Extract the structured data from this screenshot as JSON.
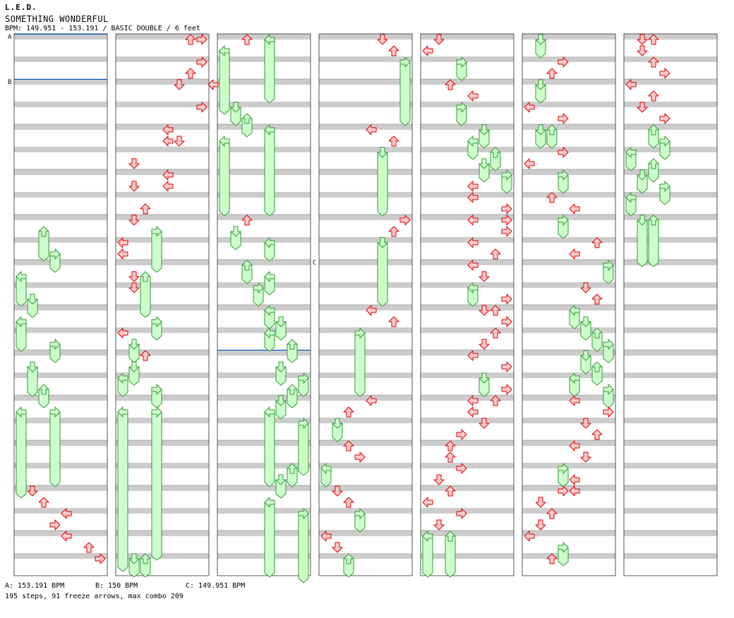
{
  "header": {
    "artist": "L.E.D.",
    "title": "SOMETHING WONDERFUL",
    "info": "BPM: 149.951 - 153.191 / BASIC DOUBLE / 6 feet"
  },
  "footer": {
    "bpm_a": "A: 153.191 BPM",
    "bpm_b": "B: 150 BPM",
    "bpm_c": "C: 149.951 BPM",
    "summary": "195 steps, 91 freeze arrows, max combo 209"
  },
  "markers": {
    "a": "A",
    "b": "B",
    "c": "C"
  },
  "colors": {
    "stripe": "#cccccc",
    "border": "#555555",
    "arrow_fill": "#ffcccc",
    "arrow_stroke": "#dd0000",
    "freeze_fill": "#ccffcc",
    "freeze_stroke": "#339933",
    "bpm_line": "#0055cc"
  },
  "chart_data": {
    "type": "step-chart",
    "mode": "BASIC DOUBLE",
    "difficulty_feet": 6,
    "bpm_range": [
      149.951,
      153.191
    ],
    "measures_per_column": 12,
    "lanes": [
      "L1",
      "D1",
      "U1",
      "R1",
      "L2",
      "D2",
      "U2",
      "R2"
    ],
    "bpm_changes": [
      {
        "label": "A",
        "bpm": 153.191,
        "beat": 0
      },
      {
        "label": "B",
        "bpm": 150,
        "beat": 4
      },
      {
        "label": "C",
        "bpm": 149.951,
        "beat": 124
      }
    ],
    "steps": 195,
    "freeze_arrows": 91,
    "max_combo": 209,
    "columns": [
      {
        "notes": [
          {
            "b": 17,
            "l": 2,
            "f": 2.5
          },
          {
            "b": 19,
            "l": 3,
            "f": 1.5
          },
          {
            "b": 21,
            "l": 0,
            "f": 2.5
          },
          {
            "b": 23,
            "l": 1,
            "f": 1.5
          },
          {
            "b": 25,
            "l": 0,
            "f": 2.5
          },
          {
            "b": 27,
            "l": 3,
            "f": 1.5
          },
          {
            "b": 29,
            "l": 1,
            "f": 2.5
          },
          {
            "b": 31,
            "l": 2,
            "f": 1.5
          },
          {
            "b": 33,
            "l": 0,
            "f": 7.5
          },
          {
            "b": 33,
            "l": 3,
            "f": 6.5
          },
          {
            "b": 40,
            "l": 1
          },
          {
            "b": 41,
            "l": 2
          },
          {
            "b": 42,
            "l": 4
          },
          {
            "b": 43,
            "l": 3
          },
          {
            "b": 44,
            "l": 4
          },
          {
            "b": 45,
            "l": 6
          },
          {
            "b": 46,
            "l": 7
          }
        ]
      },
      {
        "notes": [
          {
            "b": 0,
            "l": 6
          },
          {
            "b": 0,
            "l": 7
          },
          {
            "b": 2,
            "l": 7
          },
          {
            "b": 3,
            "l": 6
          },
          {
            "b": 4,
            "l": 5
          },
          {
            "b": 4,
            "l": 8
          },
          {
            "b": 6,
            "l": 7
          },
          {
            "b": 8,
            "l": 4
          },
          {
            "b": 9,
            "l": 4
          },
          {
            "b": 9,
            "l": 5
          },
          {
            "b": 11,
            "l": 1
          },
          {
            "b": 12,
            "l": 4
          },
          {
            "b": 13,
            "l": 1
          },
          {
            "b": 13,
            "l": 4
          },
          {
            "b": 15,
            "l": 2
          },
          {
            "b": 16,
            "l": 1
          },
          {
            "b": 17,
            "l": 3,
            "f": 3.5
          },
          {
            "b": 18,
            "l": 0
          },
          {
            "b": 19,
            "l": 0
          },
          {
            "b": 21,
            "l": 1
          },
          {
            "b": 21,
            "l": 2,
            "f": 3.5
          },
          {
            "b": 22,
            "l": 1
          },
          {
            "b": 25,
            "l": 3,
            "f": 1.5
          },
          {
            "b": 26,
            "l": 0
          },
          {
            "b": 27,
            "l": 1,
            "f": 1.5
          },
          {
            "b": 28,
            "l": 2
          },
          {
            "b": 29,
            "l": 1,
            "f": 1.5
          },
          {
            "b": 30,
            "l": 0,
            "f": 1.5
          },
          {
            "b": 31,
            "l": 3,
            "f": 1.5
          },
          {
            "b": 33,
            "l": 0,
            "f": 14
          },
          {
            "b": 33,
            "l": 3,
            "f": 13
          },
          {
            "b": 46,
            "l": 1,
            "f": 1.5
          },
          {
            "b": 46,
            "l": 2,
            "f": 1.5
          }
        ]
      },
      {
        "notes": [
          {
            "b": 0,
            "l": 2
          },
          {
            "b": 0,
            "l": 4,
            "f": 5.5
          },
          {
            "b": 1,
            "l": 0,
            "f": 5.5
          },
          {
            "b": 6,
            "l": 1,
            "f": 1.5
          },
          {
            "b": 7,
            "l": 2,
            "f": 1.5
          },
          {
            "b": 8,
            "l": 4,
            "f": 7.5
          },
          {
            "b": 9,
            "l": 0,
            "f": 6.5
          },
          {
            "b": 16,
            "l": 2
          },
          {
            "b": 17,
            "l": 1,
            "f": 1.5
          },
          {
            "b": 18,
            "l": 4,
            "f": 1.5
          },
          {
            "b": 20,
            "l": 2,
            "f": 1.5
          },
          {
            "b": 21,
            "l": 4,
            "f": 1.5
          },
          {
            "b": 22,
            "l": 3,
            "f": 1.5
          },
          {
            "b": 24,
            "l": 4,
            "f": 1.5
          },
          {
            "b": 25,
            "l": 5,
            "f": 1.5
          },
          {
            "b": 26,
            "l": 4,
            "f": 1.5
          },
          {
            "b": 27,
            "l": 6,
            "f": 1.5
          },
          {
            "b": 29,
            "l": 5,
            "f": 1.5
          },
          {
            "b": 30,
            "l": 7,
            "f": 1.5
          },
          {
            "b": 31,
            "l": 6,
            "f": 1.5
          },
          {
            "b": 32,
            "l": 5,
            "f": 1.5
          },
          {
            "b": 33,
            "l": 4,
            "f": 6.5
          },
          {
            "b": 34,
            "l": 7,
            "f": 4.5
          },
          {
            "b": 38,
            "l": 6,
            "f": 1.5
          },
          {
            "b": 39,
            "l": 5,
            "f": 1.5
          },
          {
            "b": 41,
            "l": 4,
            "f": 6.5
          },
          {
            "b": 42,
            "l": 7,
            "f": 7.5
          }
        ]
      },
      {
        "notes": [
          {
            "b": 0,
            "l": 5
          },
          {
            "b": 1,
            "l": 6
          },
          {
            "b": 2,
            "l": 7,
            "f": 5.5
          },
          {
            "b": 8,
            "l": 4
          },
          {
            "b": 9,
            "l": 6
          },
          {
            "b": 10,
            "l": 5,
            "f": 5.5
          },
          {
            "b": 16,
            "l": 7
          },
          {
            "b": 17,
            "l": 6
          },
          {
            "b": 18,
            "l": 5,
            "f": 5.5
          },
          {
            "b": 24,
            "l": 4
          },
          {
            "b": 25,
            "l": 6
          },
          {
            "b": 26,
            "l": 3,
            "f": 5.5
          },
          {
            "b": 32,
            "l": 4
          },
          {
            "b": 33,
            "l": 2
          },
          {
            "b": 34,
            "l": 1,
            "f": 1.5
          },
          {
            "b": 36,
            "l": 2
          },
          {
            "b": 37,
            "l": 3
          },
          {
            "b": 38,
            "l": 0,
            "f": 1.5
          },
          {
            "b": 40,
            "l": 1
          },
          {
            "b": 41,
            "l": 2
          },
          {
            "b": 42,
            "l": 3,
            "f": 1.5
          },
          {
            "b": 44,
            "l": 0
          },
          {
            "b": 45,
            "l": 1
          },
          {
            "b": 46,
            "l": 2,
            "f": 1.5
          }
        ]
      },
      {
        "notes": [
          {
            "b": 0,
            "l": 1
          },
          {
            "b": 1,
            "l": 0
          },
          {
            "b": 2,
            "l": 3,
            "f": 1.5
          },
          {
            "b": 4,
            "l": 2
          },
          {
            "b": 5,
            "l": 4
          },
          {
            "b": 6,
            "l": 3,
            "f": 1.5
          },
          {
            "b": 8,
            "l": 5,
            "f": 1.5
          },
          {
            "b": 9,
            "l": 4,
            "f": 1.5
          },
          {
            "b": 10,
            "l": 6,
            "f": 1.5
          },
          {
            "b": 11,
            "l": 5,
            "f": 1.5
          },
          {
            "b": 12,
            "l": 7,
            "f": 1.5
          },
          {
            "b": 13,
            "l": 4
          },
          {
            "b": 14,
            "l": 4
          },
          {
            "b": 15,
            "l": 7
          },
          {
            "b": 16,
            "l": 4
          },
          {
            "b": 16,
            "l": 7
          },
          {
            "b": 17,
            "l": 7
          },
          {
            "b": 18,
            "l": 4
          },
          {
            "b": 19,
            "l": 6
          },
          {
            "b": 20,
            "l": 4
          },
          {
            "b": 21,
            "l": 5
          },
          {
            "b": 22,
            "l": 4,
            "f": 1.5
          },
          {
            "b": 23,
            "l": 7
          },
          {
            "b": 24,
            "l": 5
          },
          {
            "b": 24,
            "l": 6
          },
          {
            "b": 25,
            "l": 7
          },
          {
            "b": 26,
            "l": 6
          },
          {
            "b": 27,
            "l": 5
          },
          {
            "b": 28,
            "l": 4
          },
          {
            "b": 29,
            "l": 7
          },
          {
            "b": 30,
            "l": 5,
            "f": 1.5
          },
          {
            "b": 31,
            "l": 7
          },
          {
            "b": 32,
            "l": 4
          },
          {
            "b": 32,
            "l": 6
          },
          {
            "b": 33,
            "l": 4
          },
          {
            "b": 34,
            "l": 5
          },
          {
            "b": 35,
            "l": 3
          },
          {
            "b": 36,
            "l": 2
          },
          {
            "b": 37,
            "l": 2
          },
          {
            "b": 38,
            "l": 3
          },
          {
            "b": 39,
            "l": 1
          },
          {
            "b": 40,
            "l": 2
          },
          {
            "b": 41,
            "l": 0
          },
          {
            "b": 42,
            "l": 3
          },
          {
            "b": 43,
            "l": 1
          },
          {
            "b": 44,
            "l": 0,
            "f": 3.5
          },
          {
            "b": 44,
            "l": 2,
            "f": 3.5
          }
        ]
      },
      {
        "notes": [
          {
            "b": 0,
            "l": 1,
            "f": 1.5
          },
          {
            "b": 2,
            "l": 3
          },
          {
            "b": 3,
            "l": 2
          },
          {
            "b": 4,
            "l": 1,
            "f": 1.5
          },
          {
            "b": 6,
            "l": 0
          },
          {
            "b": 7,
            "l": 3
          },
          {
            "b": 8,
            "l": 1,
            "f": 1.5
          },
          {
            "b": 8,
            "l": 2,
            "f": 1.5
          },
          {
            "b": 10,
            "l": 3
          },
          {
            "b": 11,
            "l": 0
          },
          {
            "b": 12,
            "l": 3,
            "f": 1.5
          },
          {
            "b": 14,
            "l": 2
          },
          {
            "b": 15,
            "l": 4
          },
          {
            "b": 16,
            "l": 3,
            "f": 1.5
          },
          {
            "b": 18,
            "l": 6
          },
          {
            "b": 19,
            "l": 4
          },
          {
            "b": 20,
            "l": 7,
            "f": 1.5
          },
          {
            "b": 22,
            "l": 5
          },
          {
            "b": 23,
            "l": 6
          },
          {
            "b": 24,
            "l": 4,
            "f": 1.5
          },
          {
            "b": 25,
            "l": 5,
            "f": 1.5
          },
          {
            "b": 26,
            "l": 6,
            "f": 1.5
          },
          {
            "b": 27,
            "l": 7,
            "f": 1.5
          },
          {
            "b": 28,
            "l": 5,
            "f": 1.5
          },
          {
            "b": 29,
            "l": 6,
            "f": 1.5
          },
          {
            "b": 30,
            "l": 4,
            "f": 1.5
          },
          {
            "b": 31,
            "l": 7,
            "f": 1.5
          },
          {
            "b": 32,
            "l": 4
          },
          {
            "b": 33,
            "l": 7
          },
          {
            "b": 34,
            "l": 5
          },
          {
            "b": 35,
            "l": 6
          },
          {
            "b": 36,
            "l": 4
          },
          {
            "b": 37,
            "l": 5
          },
          {
            "b": 38,
            "l": 3,
            "f": 1.5
          },
          {
            "b": 39,
            "l": 4
          },
          {
            "b": 40,
            "l": 3
          },
          {
            "b": 40,
            "l": 4
          },
          {
            "b": 41,
            "l": 1
          },
          {
            "b": 42,
            "l": 2
          },
          {
            "b": 43,
            "l": 1
          },
          {
            "b": 44,
            "l": 0
          },
          {
            "b": 45,
            "l": 3,
            "f": 1.5
          },
          {
            "b": 46,
            "l": 2
          }
        ]
      },
      {
        "notes": [
          {
            "b": 0,
            "l": 1
          },
          {
            "b": 0,
            "l": 2
          },
          {
            "b": 1,
            "l": 1
          },
          {
            "b": 2,
            "l": 2
          },
          {
            "b": 3,
            "l": 3
          },
          {
            "b": 4,
            "l": 0
          },
          {
            "b": 5,
            "l": 2
          },
          {
            "b": 6,
            "l": 1
          },
          {
            "b": 7,
            "l": 3
          },
          {
            "b": 8,
            "l": 2,
            "f": 1.5
          },
          {
            "b": 9,
            "l": 3,
            "f": 1.5
          },
          {
            "b": 10,
            "l": 0,
            "f": 1.5
          },
          {
            "b": 11,
            "l": 2,
            "f": 1.5
          },
          {
            "b": 12,
            "l": 1,
            "f": 1.5
          },
          {
            "b": 13,
            "l": 3,
            "f": 1.5
          },
          {
            "b": 14,
            "l": 0,
            "f": 1.5
          },
          {
            "b": 16,
            "l": 1,
            "f": 4
          },
          {
            "b": 16,
            "l": 2,
            "f": 4
          }
        ]
      }
    ]
  }
}
